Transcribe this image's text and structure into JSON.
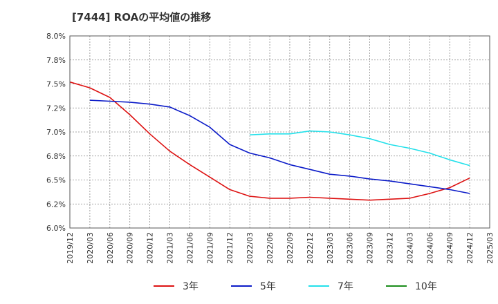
{
  "chart_data": {
    "type": "line",
    "title": "[7444]  ROAの平均値の推移",
    "xlabel": "",
    "ylabel": "",
    "ylim": [
      6.0,
      8.0
    ],
    "yticks": [
      "8.0%",
      "7.8%",
      "7.5%",
      "7.2%",
      "7.0%",
      "6.8%",
      "6.5%",
      "6.2%",
      "6.0%"
    ],
    "ytick_values": [
      8.0,
      7.75,
      7.5,
      7.25,
      7.0,
      6.75,
      6.5,
      6.25,
      6.0
    ],
    "x_ticks": [
      "2019/12",
      "2020/03",
      "2020/06",
      "2020/09",
      "2020/12",
      "2021/03",
      "2021/06",
      "2021/09",
      "2021/12",
      "2022/03",
      "2022/06",
      "2022/09",
      "2022/12",
      "2023/03",
      "2023/06",
      "2023/09",
      "2023/12",
      "2024/03",
      "2024/06",
      "2024/09",
      "2024/12",
      "2025/03"
    ],
    "grid": true,
    "legend_placement": "bottom",
    "series": [
      {
        "name": "3年",
        "color": "#dd1111",
        "values": [
          [
            0,
            7.52
          ],
          [
            1,
            7.46
          ],
          [
            2,
            7.36
          ],
          [
            3,
            7.18
          ],
          [
            4,
            6.98
          ],
          [
            5,
            6.8
          ],
          [
            6,
            6.66
          ],
          [
            7,
            6.53
          ],
          [
            8,
            6.4
          ],
          [
            9,
            6.33
          ],
          [
            10,
            6.31
          ],
          [
            11,
            6.31
          ],
          [
            12,
            6.32
          ],
          [
            13,
            6.31
          ],
          [
            14,
            6.3
          ],
          [
            15,
            6.29
          ],
          [
            16,
            6.3
          ],
          [
            17,
            6.31
          ],
          [
            18,
            6.36
          ],
          [
            19,
            6.42
          ],
          [
            20,
            6.52
          ]
        ]
      },
      {
        "name": "5年",
        "color": "#0a1ac8",
        "values": [
          [
            1,
            7.33
          ],
          [
            2,
            7.32
          ],
          [
            3,
            7.31
          ],
          [
            4,
            7.29
          ],
          [
            5,
            7.26
          ],
          [
            6,
            7.17
          ],
          [
            7,
            7.05
          ],
          [
            8,
            6.87
          ],
          [
            9,
            6.78
          ],
          [
            10,
            6.73
          ],
          [
            11,
            6.66
          ],
          [
            12,
            6.61
          ],
          [
            13,
            6.56
          ],
          [
            14,
            6.54
          ],
          [
            15,
            6.51
          ],
          [
            16,
            6.49
          ],
          [
            17,
            6.46
          ],
          [
            18,
            6.43
          ],
          [
            19,
            6.4
          ],
          [
            20,
            6.36
          ]
        ]
      },
      {
        "name": "7年",
        "color": "#22e0ea",
        "values": [
          [
            9,
            6.97
          ],
          [
            10,
            6.98
          ],
          [
            11,
            6.98
          ],
          [
            12,
            7.01
          ],
          [
            13,
            7.0
          ],
          [
            14,
            6.97
          ],
          [
            15,
            6.93
          ],
          [
            16,
            6.87
          ],
          [
            17,
            6.83
          ],
          [
            18,
            6.78
          ],
          [
            19,
            6.71
          ],
          [
            20,
            6.65
          ]
        ]
      },
      {
        "name": "10年",
        "color": "#1a8c1a",
        "values": []
      }
    ]
  }
}
